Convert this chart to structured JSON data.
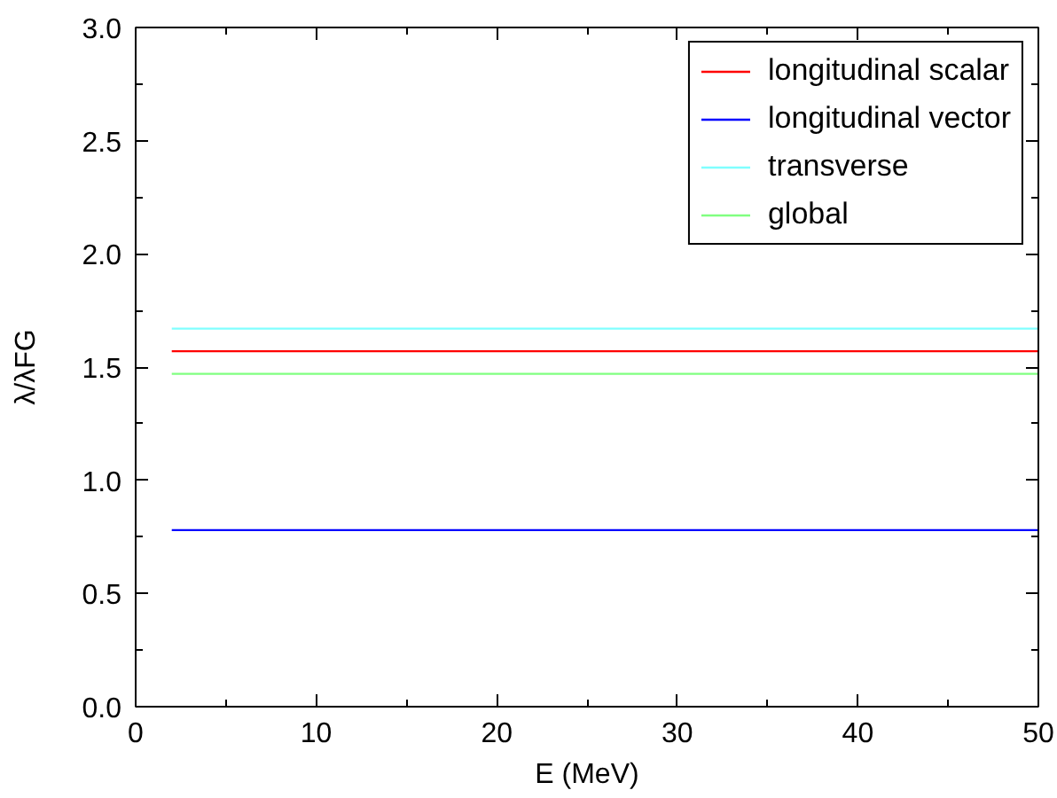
{
  "chart_data": {
    "type": "line",
    "xlabel": "E (MeV)",
    "ylabel": "λ/λFG",
    "x": [
      2,
      50
    ],
    "series": [
      {
        "name": "longitudinal scalar",
        "color": "#ff0000",
        "values": [
          1.57,
          1.57
        ]
      },
      {
        "name": "longitudinal vector",
        "color": "#0000ff",
        "values": [
          0.78,
          0.78
        ]
      },
      {
        "name": "transverse",
        "color": "#80ffff",
        "values": [
          1.67,
          1.67
        ]
      },
      {
        "name": "global",
        "color": "#80ff80",
        "values": [
          1.47,
          1.47
        ]
      }
    ],
    "xlim": [
      0,
      50
    ],
    "xticks": [
      0,
      {
        "value": 5,
        "label": null
      },
      10,
      {
        "value": 15,
        "label": null
      },
      20,
      {
        "value": 25,
        "label": null
      },
      30,
      {
        "value": 35,
        "label": null
      },
      40,
      {
        "value": 45,
        "label": null
      },
      50
    ],
    "ylim": [
      0,
      3
    ],
    "yticks": [
      {
        "value": 0,
        "label": "0.0"
      },
      {
        "value": 0.25,
        "label": null
      },
      {
        "value": 0.5,
        "label": "0.5"
      },
      {
        "value": 0.75,
        "label": null
      },
      {
        "value": 1,
        "label": "1.0"
      },
      {
        "value": 1.25,
        "label": null
      },
      {
        "value": 1.5,
        "label": "1.5"
      },
      {
        "value": 1.75,
        "label": null
      },
      {
        "value": 2,
        "label": "2.0"
      },
      {
        "value": 2.25,
        "label": null
      },
      {
        "value": 2.5,
        "label": "2.5"
      },
      {
        "value": 2.75,
        "label": null
      },
      {
        "value": 3,
        "label": "3.0"
      }
    ],
    "grid": false,
    "legend": "top right",
    "marker": "none",
    "line_style": "solid"
  }
}
